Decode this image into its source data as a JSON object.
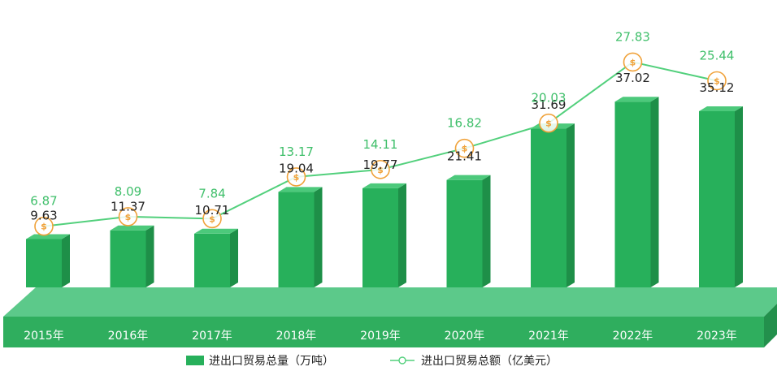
{
  "colors": {
    "bar_front": "#27b05b",
    "bar_side": "#1e8f48",
    "bar_top": "#4cc97b",
    "floor_top": "#5cc98a",
    "floor_front": "#2fae5e",
    "floor_side": "#23904c",
    "line": "#52d07c",
    "coin": "#f0a23a",
    "value_text": "#3fbf6a",
    "volume_text": "#222222"
  },
  "chart_data": {
    "type": "bar",
    "categories": [
      "2015年",
      "2016年",
      "2017年",
      "2018年",
      "2019年",
      "2020年",
      "2021年",
      "2022年",
      "2023年"
    ],
    "series": [
      {
        "name": "进出口贸易总量（万吨）",
        "type": "bar",
        "values": [
          9.63,
          11.37,
          10.71,
          19.04,
          19.77,
          21.41,
          31.69,
          37.02,
          35.12
        ]
      },
      {
        "name": "进出口贸易总额（亿美元）",
        "type": "line",
        "marker": "coin-icon",
        "values": [
          6.87,
          8.09,
          7.84,
          13.17,
          14.11,
          16.82,
          20.03,
          27.83,
          25.44
        ]
      }
    ],
    "legend_position": "bottom",
    "grid": false
  }
}
